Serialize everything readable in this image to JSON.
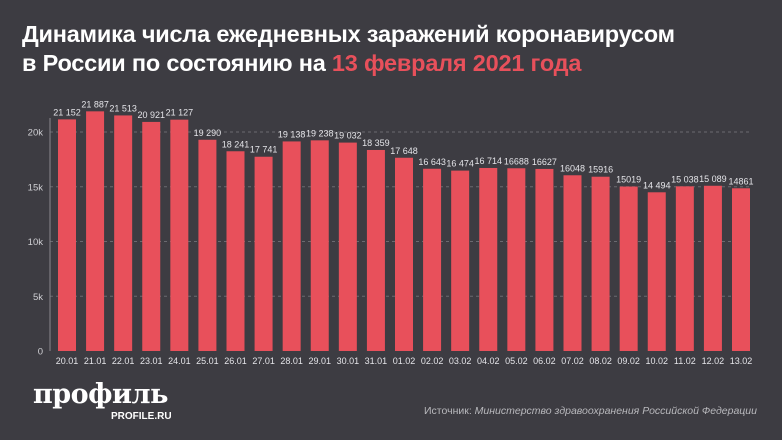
{
  "title": {
    "line1": "Динамика числа ежедневных заражений коронавирусом",
    "line2_prefix": "в России по состоянию на ",
    "line2_highlight": "13 февраля 2021 года"
  },
  "colors": {
    "bar": "#e8505b",
    "highlight": "#e8505b",
    "background": "#3d3c42"
  },
  "chart_data": {
    "type": "bar",
    "title": "Динамика числа ежедневных заражений коронавирусом в России по состоянию на 13 февраля 2021 года",
    "xlabel": "",
    "ylabel": "",
    "ylim": [
      0,
      22000
    ],
    "yticks": [
      0,
      5000,
      10000,
      15000,
      20000
    ],
    "ytick_labels": [
      "0",
      "5k",
      "10k",
      "15k",
      "20k"
    ],
    "grid": true,
    "categories": [
      "20.01",
      "21.01",
      "22.01",
      "23.01",
      "24.01",
      "25.01",
      "26.01",
      "27.01",
      "28.01",
      "29.01",
      "30.01",
      "31.01",
      "01.02",
      "02.02",
      "03.02",
      "04.02",
      "05.02",
      "06.02",
      "07.02",
      "08.02",
      "09.02",
      "10.02",
      "11.02",
      "12.02",
      "13.02"
    ],
    "values": [
      21152,
      21887,
      21513,
      20921,
      21127,
      19290,
      18241,
      17741,
      19138,
      19238,
      19032,
      18359,
      17648,
      16643,
      16474,
      16714,
      16688,
      16627,
      16048,
      15916,
      15019,
      14494,
      15038,
      15089,
      14861
    ],
    "data_labels": [
      "21 152",
      "21 887",
      "21 513",
      "20 921",
      "21 127",
      "19 290",
      "18 241",
      "17 741",
      "19 138",
      "19 238",
      "19 032",
      "18 359",
      "17 648",
      "16 643",
      "16 474",
      "16 714",
      "16688",
      "16627",
      "16048",
      "15916",
      "15019",
      "14 494",
      "15 038",
      "15 089",
      "14861"
    ]
  },
  "footer": {
    "logo": "профиль",
    "logo_sub": "PROFILE.RU",
    "source_label": "Источник: ",
    "source_text": "Министерство здравоохранения Российской Федерации"
  }
}
